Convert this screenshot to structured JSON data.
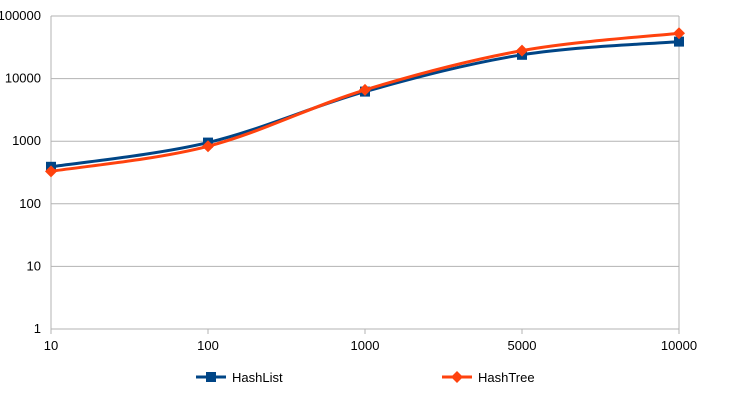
{
  "chart_data": {
    "type": "line",
    "title": "",
    "xlabel": "",
    "ylabel": "",
    "categories": [
      "10",
      "100",
      "1000",
      "5000",
      "10000"
    ],
    "y_scale": "log",
    "ylim": [
      1,
      100000
    ],
    "y_ticks": [
      "1",
      "10",
      "100",
      "1000",
      "10000",
      "100000"
    ],
    "grid": "horizontal",
    "legend_position": "bottom",
    "series": [
      {
        "name": "HashList",
        "values": [
          390,
          950,
          6200,
          24000,
          39000
        ],
        "color": "#004586",
        "marker": "square"
      },
      {
        "name": "HashTree",
        "values": [
          330,
          830,
          6600,
          28000,
          53000
        ],
        "color": "#ff420e",
        "marker": "diamond"
      }
    ]
  }
}
